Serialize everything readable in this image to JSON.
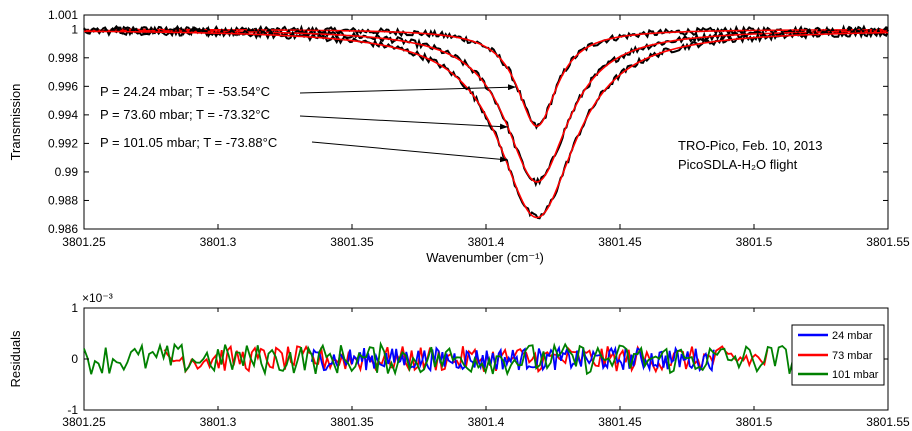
{
  "chart_data": [
    {
      "type": "line",
      "panel": "top",
      "xlabel": "Wavenumber (cm⁻¹)",
      "ylabel": "Transmission",
      "xlim": [
        3801.25,
        3801.55
      ],
      "ylim": [
        0.986,
        1.001
      ],
      "xticks": [
        "3801.25",
        "3801.3",
        "3801.35",
        "3801.4",
        "3801.45",
        "3801.5",
        "3801.55"
      ],
      "yticks": [
        "0.986",
        "0.988",
        "0.99",
        "0.992",
        "0.994",
        "0.996",
        "0.998",
        "1",
        "1.001"
      ],
      "line_center": 3801.419,
      "series": [
        {
          "label": "P = 24.24 mbar; T = -53.54°C",
          "depth": 0.0068,
          "hwhm": 0.009,
          "x_start": 3801.26,
          "x_end": 3801.55
        },
        {
          "label": "P = 73.60 mbar; T = -73.32°C",
          "depth": 0.0107,
          "hwhm": 0.0145,
          "x_start": 3801.25,
          "x_end": 3801.55
        },
        {
          "label": "P = 101.05 mbar; T = -73.88°C",
          "depth": 0.0132,
          "hwhm": 0.0175,
          "x_start": 3801.25,
          "x_end": 3801.55
        }
      ],
      "colors": {
        "measured": "#000000",
        "fit": "#ff0000"
      },
      "annotation": {
        "line1": "TRO-Pico, Feb. 10, 2013",
        "line2": "PicoSDLA-H₂O flight"
      },
      "grid": false
    },
    {
      "type": "line",
      "panel": "bottom",
      "ylabel": "Residuals",
      "exponent_label": "×10⁻³",
      "xlim": [
        3801.25,
        3801.55
      ],
      "ylim": [
        -1,
        1
      ],
      "xticks": [
        "3801.25",
        "3801.3",
        "3801.35",
        "3801.4",
        "3801.45",
        "3801.5",
        "3801.55"
      ],
      "yticks": [
        "-1",
        "0",
        "1"
      ],
      "legend_position": "right",
      "series": [
        {
          "name": "24 mbar",
          "color": "#0000ff",
          "x_start": 3801.335,
          "x_end": 3801.485,
          "amplitude": 0.22
        },
        {
          "name": "73 mbar",
          "color": "#ff0000",
          "x_start": 3801.28,
          "x_end": 3801.505,
          "amplitude": 0.25
        },
        {
          "name": "101 mbar",
          "color": "#008000",
          "x_start": 3801.25,
          "x_end": 3801.52,
          "amplitude": 0.3
        }
      ],
      "grid": false
    }
  ]
}
